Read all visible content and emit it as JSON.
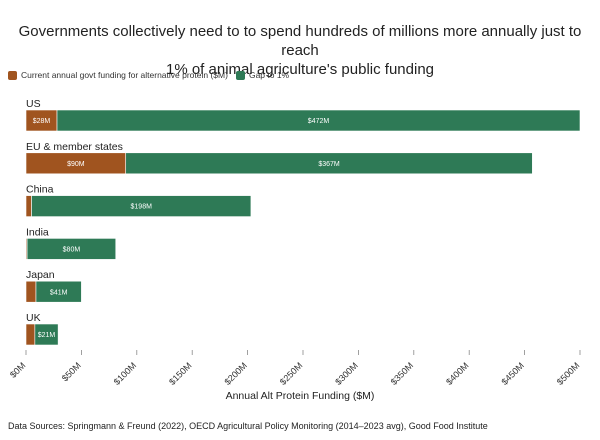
{
  "title_line1": "Governments collectively need to to spend hundreds of millions more annually just to reach",
  "title_line2": "1% of animal agriculture's public funding",
  "legend": [
    {
      "label": "Current annual govt funding for alternative protein ($M)",
      "color": "#a0541f"
    },
    {
      "label": "Gap to 1%",
      "color": "#2e7a56"
    }
  ],
  "source": "Data Sources: Springmann & Freund (2022), OECD Agricultural Policy Monitoring (2014–2023 avg), Good Food Institute",
  "chart_data": {
    "type": "bar",
    "orientation": "horizontal",
    "stacked": true,
    "title": "Governments collectively need to to spend hundreds of millions more annually just to reach 1% of animal agriculture's public funding",
    "xlabel": "Annual Alt Protein Funding ($M)",
    "xlim": [
      0,
      500
    ],
    "xticks": [
      0,
      50,
      100,
      150,
      200,
      250,
      300,
      350,
      400,
      450,
      500
    ],
    "xtick_labels": [
      "$0M",
      "$50M",
      "$100M",
      "$150M",
      "$200M",
      "$250M",
      "$300M",
      "$350M",
      "$400M",
      "$450M",
      "$500M"
    ],
    "categories": [
      "US",
      "EU & member states",
      "China",
      "India",
      "Japan",
      "UK"
    ],
    "series": [
      {
        "name": "Current annual govt funding for alternative protein ($M)",
        "color": "#a0541f",
        "values": [
          28,
          90,
          5,
          1,
          9,
          8
        ],
        "labels": [
          "$28M",
          "$90M",
          "",
          "",
          "",
          ""
        ]
      },
      {
        "name": "Gap to 1%",
        "color": "#2e7a56",
        "values": [
          472,
          367,
          198,
          80,
          41,
          21
        ],
        "labels": [
          "$472M",
          "$367M",
          "$198M",
          "$80M",
          "$41M",
          "$21M"
        ]
      }
    ],
    "grid": false,
    "legend_position": "top-left"
  }
}
